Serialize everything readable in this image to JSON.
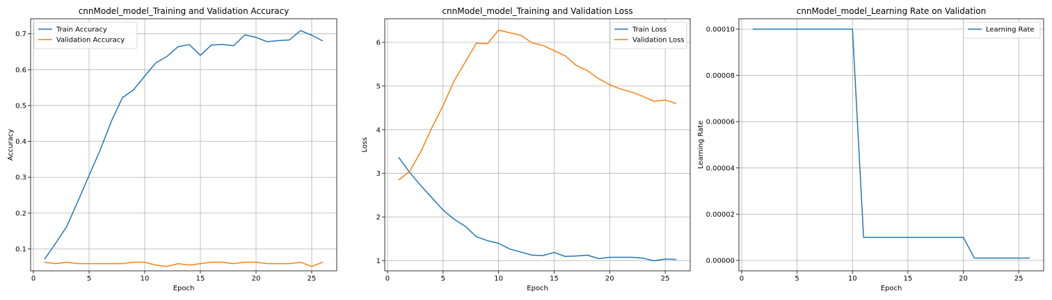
{
  "chart_data": [
    {
      "type": "line",
      "title": "cnnModel_model_Training and Validation Accuracy",
      "xlabel": "Epoch",
      "ylabel": "Accuracy",
      "xlim": [
        -0.25,
        27.25
      ],
      "ylim": [
        0.039,
        0.742
      ],
      "xticks": [
        0,
        5,
        10,
        15,
        20,
        25
      ],
      "yticks": [
        0.1,
        0.2,
        0.3,
        0.4,
        0.5,
        0.6,
        0.7
      ],
      "ytick_labels": [
        "0.1",
        "0.2",
        "0.3",
        "0.4",
        "0.5",
        "0.6",
        "0.7"
      ],
      "grid": true,
      "legend_position": "upper-left",
      "x": [
        1,
        2,
        3,
        4,
        5,
        6,
        7,
        8,
        9,
        10,
        11,
        12,
        13,
        14,
        15,
        16,
        17,
        18,
        19,
        20,
        21,
        22,
        23,
        24,
        25,
        26
      ],
      "series": [
        {
          "name": "Train Accuracy",
          "color": "#1f77b4",
          "values": [
            0.071,
            0.116,
            0.163,
            0.233,
            0.305,
            0.376,
            0.456,
            0.522,
            0.544,
            0.582,
            0.619,
            0.637,
            0.664,
            0.67,
            0.64,
            0.669,
            0.67,
            0.667,
            0.697,
            0.69,
            0.678,
            0.681,
            0.683,
            0.709,
            0.696,
            0.68
          ]
        },
        {
          "name": "Validation Accuracy",
          "color": "#ff7f0e",
          "values": [
            0.063,
            0.059,
            0.063,
            0.059,
            0.059,
            0.059,
            0.059,
            0.059,
            0.063,
            0.063,
            0.055,
            0.051,
            0.059,
            0.055,
            0.059,
            0.063,
            0.063,
            0.059,
            0.063,
            0.063,
            0.059,
            0.059,
            0.059,
            0.063,
            0.051,
            0.063
          ]
        }
      ]
    },
    {
      "type": "line",
      "title": "cnnModel_model_Training and Validation Loss",
      "xlabel": "Epoch",
      "ylabel": "Loss",
      "xlim": [
        -0.25,
        27.25
      ],
      "ylim": [
        0.77,
        6.54
      ],
      "xticks": [
        0,
        5,
        10,
        15,
        20,
        25
      ],
      "yticks": [
        1,
        2,
        3,
        4,
        5,
        6
      ],
      "ytick_labels": [
        "1",
        "2",
        "3",
        "4",
        "5",
        "6"
      ],
      "grid": true,
      "legend_position": "upper-right",
      "x": [
        1,
        2,
        3,
        4,
        5,
        6,
        7,
        8,
        9,
        10,
        11,
        12,
        13,
        14,
        15,
        16,
        17,
        18,
        19,
        20,
        21,
        22,
        23,
        24,
        25,
        26
      ],
      "series": [
        {
          "name": "Train Loss",
          "color": "#1f77b4",
          "values": [
            3.37,
            3.02,
            2.72,
            2.44,
            2.16,
            1.95,
            1.79,
            1.55,
            1.46,
            1.4,
            1.27,
            1.2,
            1.13,
            1.12,
            1.19,
            1.1,
            1.11,
            1.13,
            1.05,
            1.08,
            1.08,
            1.08,
            1.06,
            1.0,
            1.04,
            1.03
          ]
        },
        {
          "name": "Validation Loss",
          "color": "#ff7f0e",
          "values": [
            2.85,
            3.05,
            3.5,
            4.05,
            4.55,
            5.12,
            5.55,
            5.98,
            5.97,
            6.28,
            6.22,
            6.16,
            5.99,
            5.93,
            5.81,
            5.69,
            5.47,
            5.35,
            5.17,
            5.03,
            4.93,
            4.86,
            4.76,
            4.65,
            4.68,
            4.6
          ]
        }
      ]
    },
    {
      "type": "line",
      "title": "cnnModel_model_Learning Rate on Validation",
      "xlabel": "Epoch",
      "ylabel": "Learning Rate",
      "xlim": [
        -0.25,
        27.25
      ],
      "ylim": [
        -4.5e-06,
        0.0001045
      ],
      "xticks": [
        0,
        5,
        10,
        15,
        20,
        25
      ],
      "yticks": [
        0,
        2e-05,
        4e-05,
        6e-05,
        8e-05,
        0.0001
      ],
      "ytick_labels": [
        "0.00000",
        "0.00002",
        "0.00004",
        "0.00006",
        "0.00008",
        "0.00010"
      ],
      "grid": true,
      "legend_position": "upper-right",
      "x": [
        1,
        2,
        3,
        4,
        5,
        6,
        7,
        8,
        9,
        10,
        11,
        12,
        13,
        14,
        15,
        16,
        17,
        18,
        19,
        20,
        21,
        22,
        23,
        24,
        25,
        26
      ],
      "series": [
        {
          "name": "Learning Rate",
          "color": "#1f77b4",
          "values": [
            0.0001,
            0.0001,
            0.0001,
            0.0001,
            0.0001,
            0.0001,
            0.0001,
            0.0001,
            0.0001,
            0.0001,
            1e-05,
            1e-05,
            1e-05,
            1e-05,
            1e-05,
            1e-05,
            1e-05,
            1e-05,
            1e-05,
            1e-05,
            1e-06,
            1e-06,
            1e-06,
            1e-06,
            1e-06,
            1e-06
          ]
        }
      ]
    }
  ]
}
